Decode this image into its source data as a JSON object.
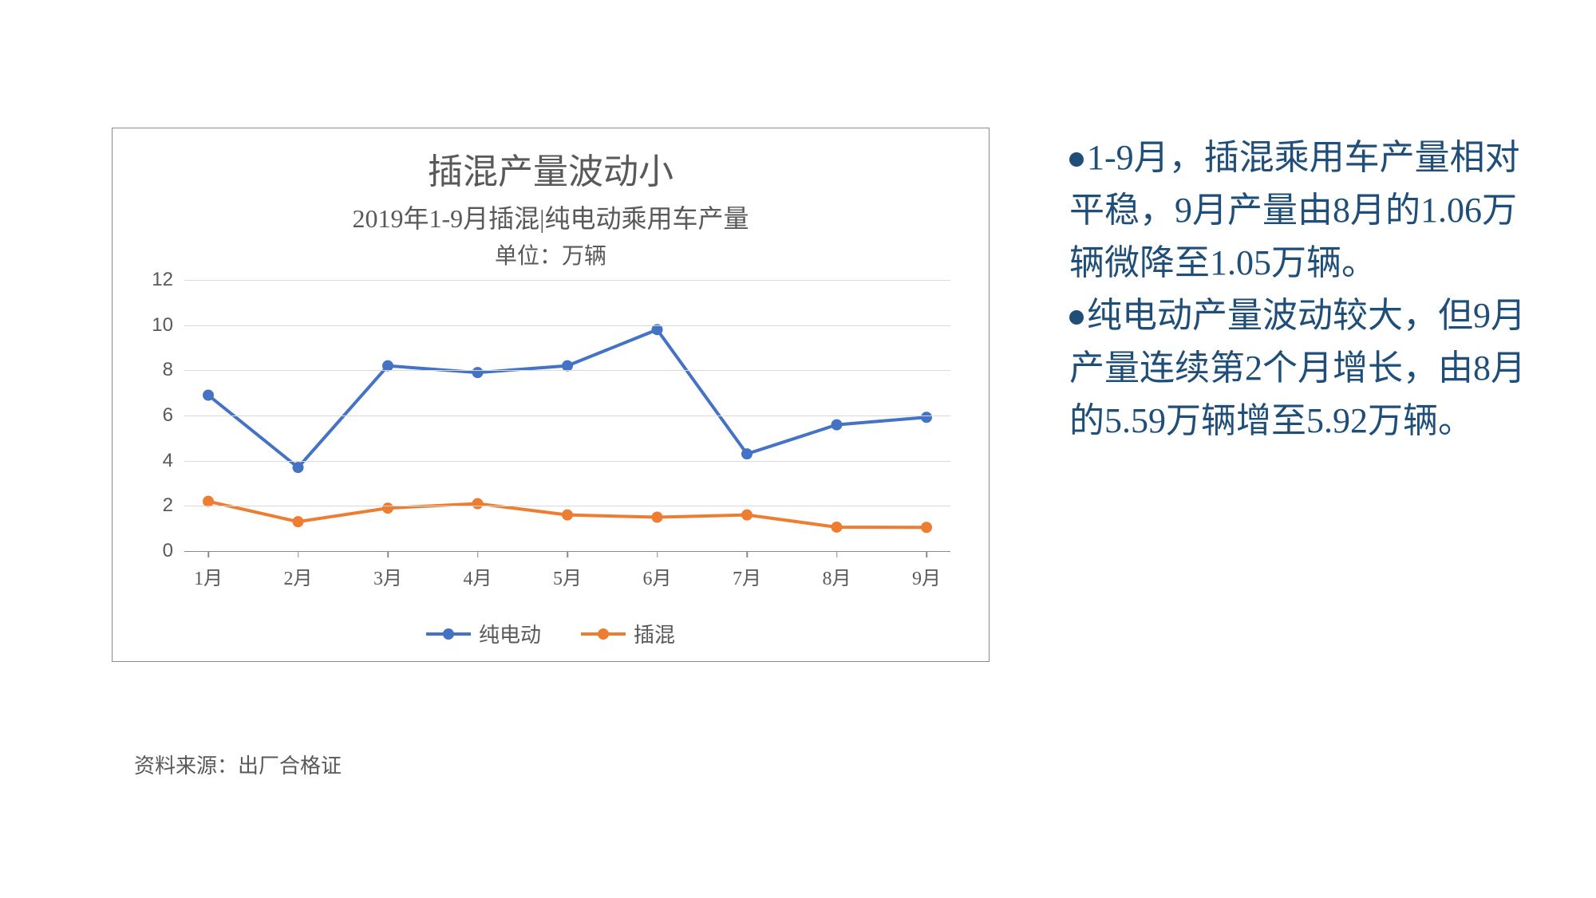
{
  "chart": {
    "type": "line",
    "title": "插混产量波动小",
    "subtitle": "2019年1-9月插混|纯电动乘用车产量",
    "unit_label": "单位：万辆",
    "categories": [
      "1月",
      "2月",
      "3月",
      "4月",
      "5月",
      "6月",
      "7月",
      "8月",
      "9月"
    ],
    "series": [
      {
        "name": "纯电动",
        "color": "#4472c4",
        "marker_color": "#4472c4",
        "line_width": 4,
        "marker_size": 14,
        "values": [
          6.9,
          3.7,
          8.2,
          7.9,
          8.2,
          9.8,
          4.3,
          5.59,
          5.92
        ]
      },
      {
        "name": "插混",
        "color": "#ed7d31",
        "marker_color": "#ed7d31",
        "line_width": 4,
        "marker_size": 14,
        "values": [
          2.2,
          1.3,
          1.9,
          2.1,
          1.6,
          1.5,
          1.6,
          1.06,
          1.05
        ]
      }
    ],
    "y_axis": {
      "min": 0,
      "max": 12,
      "tick_step": 2,
      "ticks": [
        0,
        2,
        4,
        6,
        8,
        10,
        12
      ]
    },
    "grid_color": "#d9d9d9",
    "axis_color": "#8a8a8a",
    "background_color": "#ffffff",
    "text_color": "#595959",
    "title_fontsize": 44,
    "subtitle_fontsize": 32,
    "unit_fontsize": 28,
    "tick_fontsize": 24,
    "legend_fontsize": 26
  },
  "side_text": {
    "color": "#1f4e79",
    "fontsize": 44,
    "bullets": [
      "1-9月，插混乘用车产量相对平稳，9月产量由8月的1.06万辆微降至1.05万辆。",
      "纯电动产量波动较大，但9月产量连续第2个月增长，由8月的5.59万辆增至5.92万辆。"
    ]
  },
  "source": {
    "label": "资料来源：出厂合格证",
    "color": "#595959",
    "fontsize": 26
  }
}
